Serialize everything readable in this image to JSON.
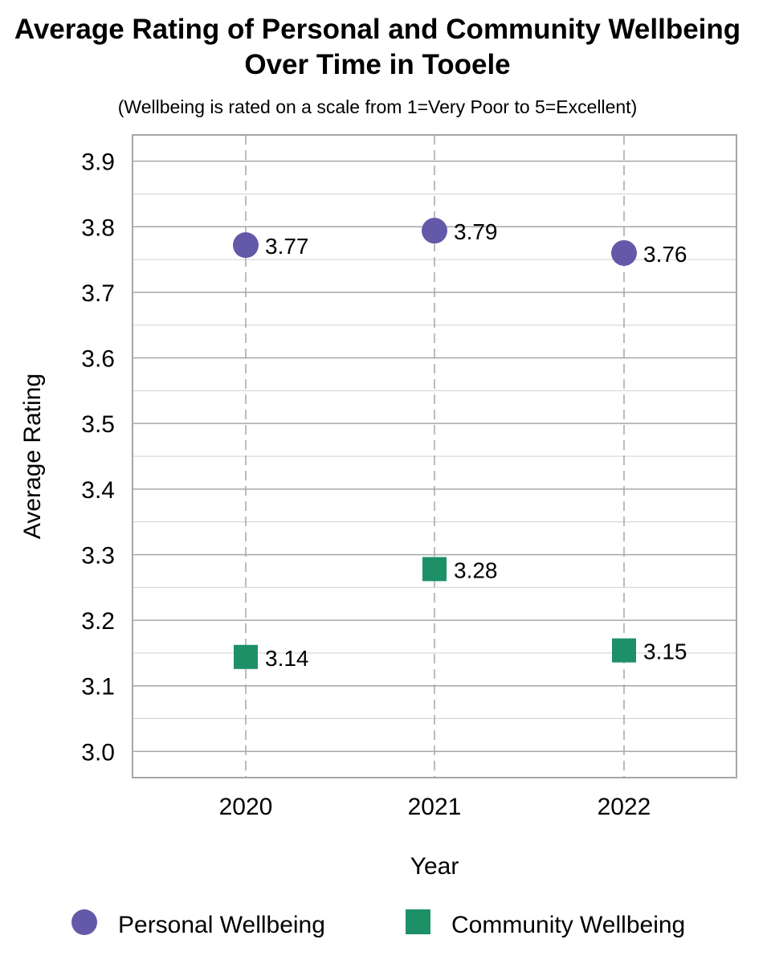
{
  "chart_data": {
    "type": "scatter",
    "title_lines": [
      "Average Rating of Personal and Community Wellbeing",
      "Over Time in Tooele"
    ],
    "subtitle": "(Wellbeing is rated on a scale from 1=Very Poor to 5=Excellent)",
    "xlabel": "Year",
    "ylabel": "Average Rating",
    "categories": [
      "2020",
      "2021",
      "2022"
    ],
    "ylim": [
      2.96,
      3.94
    ],
    "yticks": [
      "3.0",
      "3.1",
      "3.2",
      "3.3",
      "3.4",
      "3.5",
      "3.6",
      "3.7",
      "3.8",
      "3.9"
    ],
    "grid": true,
    "legend_position": "bottom",
    "series": [
      {
        "name": "Personal Wellbeing",
        "marker": "circle",
        "color": "#6459a9",
        "values": [
          3.772,
          3.794,
          3.76
        ],
        "labels": [
          "3.77",
          "3.79",
          "3.76"
        ]
      },
      {
        "name": "Community Wellbeing",
        "marker": "square",
        "color": "#1e9068",
        "values": [
          3.144,
          3.278,
          3.154
        ],
        "labels": [
          "3.14",
          "3.28",
          "3.15"
        ]
      }
    ]
  }
}
